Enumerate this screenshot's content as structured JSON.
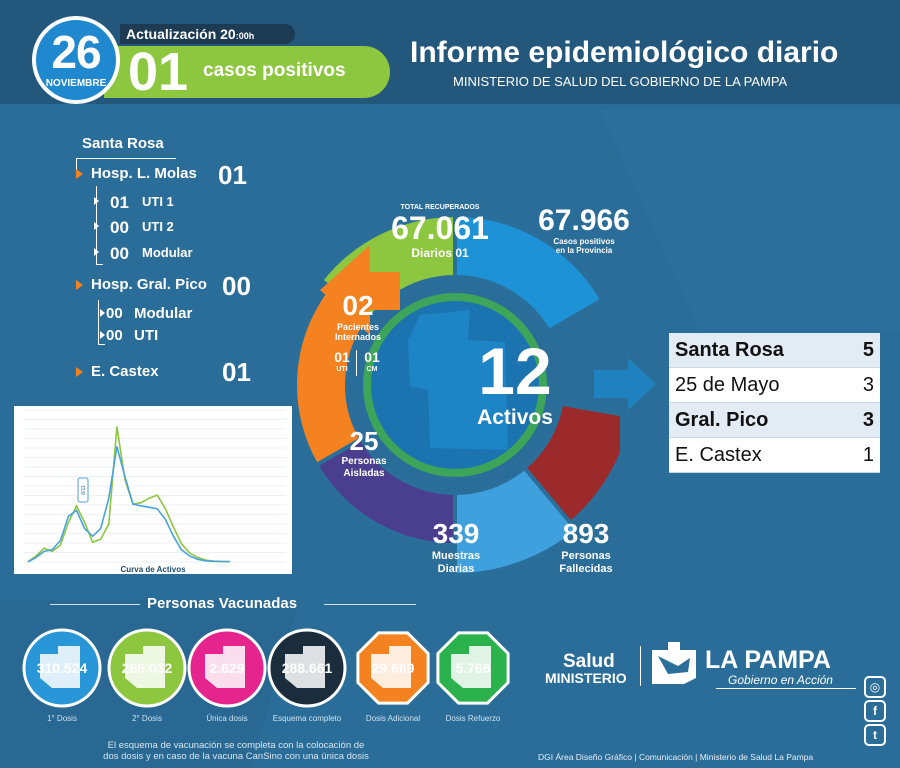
{
  "header": {
    "day": "26",
    "month": "NOVIEMBRE",
    "update_label": "Actualización 20",
    "update_time": ":00h",
    "cases_number": "01",
    "cases_label": "casos positivos",
    "title": "Informe epidemiológico diario",
    "subtitle": "MINISTERIO DE SALUD DEL GOBIERNO DE LA PAMPA"
  },
  "hospitals": {
    "city": "Santa Rosa",
    "molas_label": "Hosp. L. Molas",
    "molas_value": "01",
    "molas_sub": [
      {
        "value": "01",
        "label": "UTI 1"
      },
      {
        "value": "00",
        "label": "UTI 2"
      },
      {
        "value": "00",
        "label": "Modular"
      }
    ],
    "pico_label": "Hosp. Gral. Pico",
    "pico_value": "00",
    "pico_sub": [
      {
        "value": "00",
        "label": "Modular"
      },
      {
        "value": "00",
        "label": "UTI"
      }
    ],
    "castex_label": "E. Castex",
    "castex_value": "01"
  },
  "chart_data": {
    "type": "line",
    "title": "Curva de Activos",
    "annotation": "8/11",
    "series": [
      {
        "color": "#8dc63f",
        "values": [
          2,
          40,
          90,
          70,
          110,
          260,
          370,
          260,
          130,
          150,
          250,
          890,
          540,
          380,
          390,
          420,
          440,
          350,
          230,
          120,
          60,
          30,
          12,
          6,
          4,
          3
        ]
      },
      {
        "color": "#4aa3df",
        "values": [
          1,
          30,
          70,
          80,
          140,
          300,
          340,
          220,
          170,
          220,
          420,
          760,
          560,
          380,
          370,
          360,
          350,
          280,
          170,
          80,
          40,
          18,
          8,
          4,
          3,
          2
        ]
      }
    ],
    "ylim": [
      0,
      1000
    ]
  },
  "wheel": {
    "recuperados_label": "TOTAL RECUPERADOS",
    "recuperados_value": "67.061",
    "recuperados_daily": "Diarios 01",
    "positivos_value": "67.966",
    "positivos_label1": "Casos positivos",
    "positivos_label2": "en la Provincia",
    "internados_value": "02",
    "internados_label1": "Pacientes",
    "internados_label2": "Internados",
    "uti_value": "01",
    "uti_label": "UTI",
    "cm_value": "01",
    "cm_label": "CM",
    "aisladas_value": "25",
    "aisladas_label1": "Personas",
    "aisladas_label2": "Aisladas",
    "muestras_value": "339",
    "muestras_label1": "Muestras",
    "muestras_label2": "Diarias",
    "fallecidas_value": "893",
    "fallecidas_label1": "Personas",
    "fallecidas_label2": "Fallecidas",
    "activos_value": "12",
    "activos_label": "Activos"
  },
  "localities": [
    {
      "name": "Santa Rosa",
      "value": "5"
    },
    {
      "name": "25 de Mayo",
      "value": "3"
    },
    {
      "name": "Gral. Pico",
      "value": "3"
    },
    {
      "name": "E. Castex",
      "value": "1"
    }
  ],
  "vaccines": {
    "title": "Personas Vacunadas",
    "items": [
      {
        "value": "310.524",
        "label": "1° Dosis",
        "color": "#2996d8"
      },
      {
        "value": "286.032",
        "label": "2° Dosis",
        "color": "#8dc63f"
      },
      {
        "value": "2.629",
        "label": "Única dosis",
        "color": "#e5258d"
      },
      {
        "value": "288.661",
        "label": "Esquema completo",
        "color": "#1b2d3c"
      },
      {
        "value": "29.669",
        "label": "Dosis Adicional",
        "color": "#f58220"
      },
      {
        "value": "5.766",
        "label": "Dosis Refuerzo",
        "color": "#2bb24c"
      }
    ],
    "footnote": "El esquema de vacunación se completa con la colocación de dos dosis y en caso de la vacuna CanSino con una única dosis"
  },
  "logos": {
    "salud": "Salud",
    "ministerio": "MINISTERIO",
    "lapampa": "LA PAMPA",
    "gobierno": "Gobierno en Acción"
  },
  "credits": "DGI Área Diseño Gráfico  | Comunicación | Ministerio de Salud La Pampa"
}
